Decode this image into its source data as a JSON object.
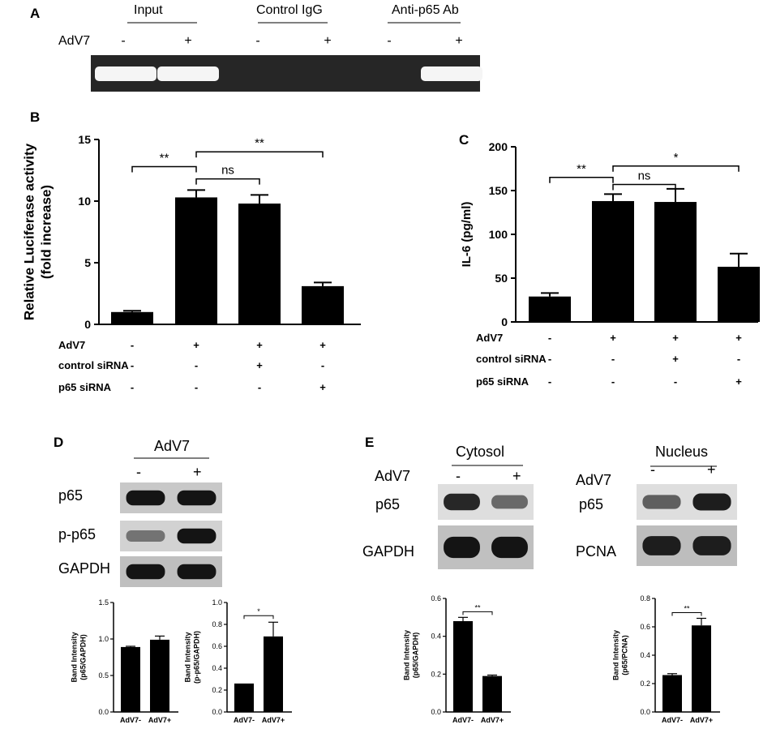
{
  "panel_a": {
    "label": "A",
    "groups": [
      "Input",
      "Control IgG",
      "Anti-p65 Ab"
    ],
    "row_label": "AdV7",
    "signs": [
      "-",
      "+",
      "-",
      "+",
      "-",
      "+"
    ],
    "band_present": [
      true,
      true,
      false,
      false,
      false,
      true
    ]
  },
  "panel_b": {
    "label": "B",
    "chart_data": {
      "type": "bar",
      "ylabel": "Relative Luciferase activity\n(fold increase)",
      "ylim": [
        0,
        15
      ],
      "yticks": [
        0,
        5,
        10,
        15
      ],
      "values": [
        1.0,
        10.3,
        9.8,
        3.1
      ],
      "errors": [
        0.1,
        0.6,
        0.7,
        0.3
      ],
      "rows": [
        {
          "label": "AdV7",
          "signs": [
            "-",
            "+",
            "+",
            "+"
          ]
        },
        {
          "label": "control siRNA",
          "signs": [
            "-",
            "-",
            "+",
            "-"
          ]
        },
        {
          "label": "p65 siRNA",
          "signs": [
            "-",
            "-",
            "-",
            "+"
          ]
        }
      ],
      "brackets": [
        {
          "from": 0,
          "to": 1,
          "label": "**",
          "level": 12.8
        },
        {
          "from": 1,
          "to": 2,
          "label": "ns",
          "level": 11.8
        },
        {
          "from": 1,
          "to": 3,
          "label": "**",
          "level": 14.0
        }
      ]
    }
  },
  "panel_c": {
    "label": "C",
    "chart_data": {
      "type": "bar",
      "ylabel": "IL-6 (pg/ml)",
      "ylim": [
        0,
        200
      ],
      "yticks": [
        0,
        50,
        100,
        150,
        200
      ],
      "values": [
        29,
        138,
        137,
        63
      ],
      "errors": [
        4,
        8,
        15,
        15
      ],
      "rows": [
        {
          "label": "AdV7",
          "signs": [
            "-",
            "+",
            "+",
            "+"
          ]
        },
        {
          "label": "control siRNA",
          "signs": [
            "-",
            "-",
            "+",
            "-"
          ]
        },
        {
          "label": "p65 siRNA",
          "signs": [
            "-",
            "-",
            "-",
            "+"
          ]
        }
      ],
      "brackets": [
        {
          "from": 0,
          "to": 1,
          "label": "**",
          "level": 165
        },
        {
          "from": 1,
          "to": 2,
          "label": "ns",
          "level": 157
        },
        {
          "from": 1,
          "to": 3,
          "label": "*",
          "level": 178
        }
      ]
    }
  },
  "panel_d": {
    "label": "D",
    "group": "AdV7",
    "signs": [
      "-",
      "+"
    ],
    "blots": [
      {
        "label": "p65",
        "bands": [
          0.95,
          0.95
        ]
      },
      {
        "label": "p-p65",
        "bands": [
          0.45,
          0.95
        ]
      },
      {
        "label": "GAPDH",
        "bands": [
          0.95,
          0.95
        ]
      }
    ],
    "charts": [
      {
        "type": "bar",
        "categories": [
          "AdV7-",
          "AdV7+"
        ],
        "values": [
          0.89,
          0.99
        ],
        "errors": [
          0.01,
          0.05
        ],
        "ylim": [
          0,
          1.5
        ],
        "yticks": [
          "0.0",
          "0.5",
          "1.0",
          "1.5"
        ],
        "ylabel": "Band Intensity\n(p65/GAPDH)"
      },
      {
        "type": "bar",
        "categories": [
          "AdV7-",
          "AdV7+"
        ],
        "values": [
          0.26,
          0.69
        ],
        "errors": [
          0.0,
          0.13
        ],
        "ylim": [
          0,
          1.0
        ],
        "yticks": [
          "0.0",
          "0.2",
          "0.4",
          "0.6",
          "0.8",
          "1.0"
        ],
        "ylabel": "Band Intensity\n(p-p65/GAPDH)",
        "bracket": {
          "label": "*",
          "level": 0.88
        }
      }
    ]
  },
  "panel_e": {
    "label": "E",
    "cytosol": {
      "title": "Cytosol",
      "group": "AdV7",
      "signs": [
        "-",
        "+"
      ],
      "blots": [
        {
          "label": "p65",
          "bands": [
            0.85,
            0.5
          ]
        },
        {
          "label": "GAPDH",
          "bands": [
            0.95,
            0.95
          ]
        }
      ]
    },
    "nucleus": {
      "title": "Nucleus",
      "group": "AdV7",
      "signs": [
        "-",
        "+"
      ],
      "blots": [
        {
          "label": "p65",
          "bands": [
            0.55,
            0.9
          ]
        },
        {
          "label": "PCNA",
          "bands": [
            0.9,
            0.9
          ]
        }
      ]
    },
    "charts": [
      {
        "type": "bar",
        "categories": [
          "AdV7-",
          "AdV7+"
        ],
        "values": [
          0.48,
          0.19
        ],
        "errors": [
          0.02,
          0.005
        ],
        "ylim": [
          0,
          0.6
        ],
        "yticks": [
          "0.0",
          "0.2",
          "0.4",
          "0.6"
        ],
        "ylabel": "Band Intensity\n(p65/GAPDH)",
        "bracket": {
          "label": "**",
          "level": 0.53
        }
      },
      {
        "type": "bar",
        "categories": [
          "AdV7-",
          "AdV7+"
        ],
        "values": [
          0.26,
          0.61
        ],
        "errors": [
          0.01,
          0.05
        ],
        "ylim": [
          0,
          0.8
        ],
        "yticks": [
          "0.0",
          "0.2",
          "0.4",
          "0.6",
          "0.8"
        ],
        "ylabel": "Band Intensity\n(p65/PCNA)",
        "bracket": {
          "label": "**",
          "level": 0.7
        }
      }
    ]
  }
}
